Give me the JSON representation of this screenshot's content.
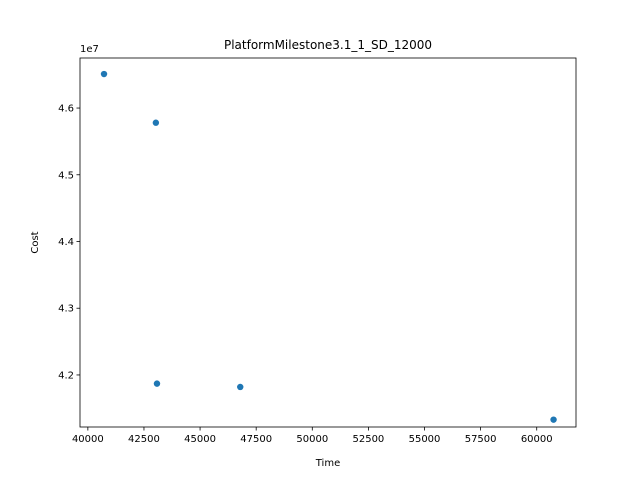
{
  "chart_data": {
    "type": "scatter",
    "title": "PlatformMilestone3.1_1_SD_12000",
    "xlabel": "Time",
    "ylabel": "Cost",
    "y_offset_text": "1e7",
    "xlim": [
      39650,
      61750
    ],
    "ylim": [
      41220000,
      46750000
    ],
    "x_ticks": [
      40000,
      42500,
      45000,
      47500,
      50000,
      52500,
      55000,
      57500,
      60000
    ],
    "x_tick_labels": [
      "40000",
      "42500",
      "45000",
      "47500",
      "50000",
      "52500",
      "55000",
      "57500",
      "60000"
    ],
    "y_ticks": [
      42000000,
      43000000,
      44000000,
      45000000,
      46000000
    ],
    "y_tick_labels": [
      "4.2",
      "4.3",
      "4.4",
      "4.5",
      "4.6"
    ],
    "grid": false,
    "marker_color": "#1f77b4",
    "points": [
      {
        "x": 40720,
        "y": 46510000
      },
      {
        "x": 43030,
        "y": 45780000
      },
      {
        "x": 43080,
        "y": 41870000
      },
      {
        "x": 46790,
        "y": 41820000
      },
      {
        "x": 60750,
        "y": 41330000
      }
    ]
  }
}
